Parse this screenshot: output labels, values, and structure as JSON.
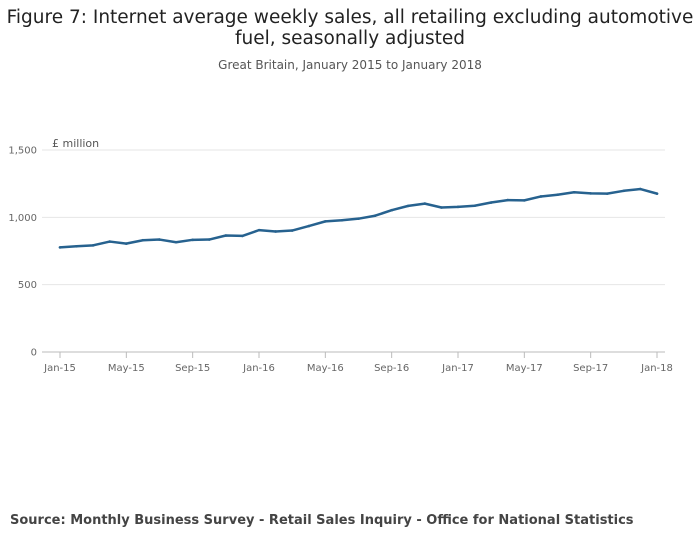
{
  "chart_data": {
    "type": "line",
    "title": "Figure 7: Internet average weekly sales, all retailing excluding automotive fuel, seasonally adjusted",
    "subtitle": "Great Britain, January 2015 to January 2018",
    "ylabel": "£ million",
    "xlabel": "",
    "ylim": [
      0,
      1500
    ],
    "yticks": [
      0,
      500,
      1000,
      1500
    ],
    "ytick_labels": [
      "0",
      "500",
      "1,000",
      "1,500"
    ],
    "x_tick_labels": [
      {
        "index": 0,
        "label": "Jan-15"
      },
      {
        "index": 4,
        "label": "May-15"
      },
      {
        "index": 8,
        "label": "Sep-15"
      },
      {
        "index": 12,
        "label": "Jan-16"
      },
      {
        "index": 16,
        "label": "May-16"
      },
      {
        "index": 20,
        "label": "Sep-16"
      },
      {
        "index": 24,
        "label": "Jan-17"
      },
      {
        "index": 28,
        "label": "May-17"
      },
      {
        "index": 32,
        "label": "Sep-17"
      },
      {
        "index": 36,
        "label": "Jan-18"
      }
    ],
    "series": [
      {
        "name": "Internet average weekly sales",
        "color": "#27628f",
        "values": [
          777,
          785,
          792,
          820,
          805,
          830,
          835,
          815,
          833,
          835,
          865,
          862,
          905,
          895,
          902,
          935,
          970,
          978,
          990,
          1012,
          1053,
          1085,
          1102,
          1073,
          1078,
          1086,
          1110,
          1128,
          1126,
          1155,
          1168,
          1186,
          1178,
          1176,
          1197,
          1210,
          1176
        ]
      }
    ],
    "grid": true,
    "legend": "none"
  },
  "source": "Source: Monthly Business Survey - Retail Sales Inquiry - Office for National Statistics"
}
